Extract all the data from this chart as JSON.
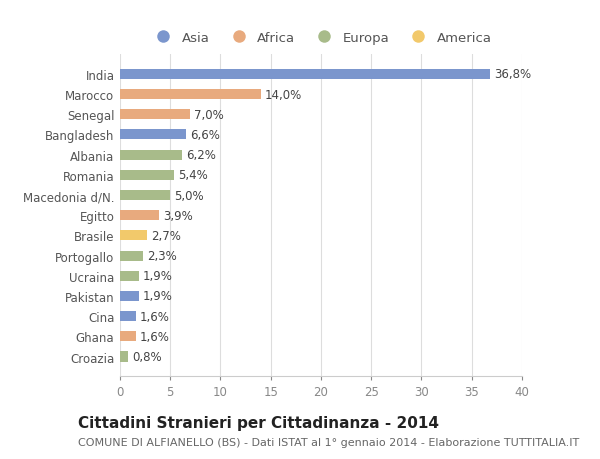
{
  "categories": [
    "India",
    "Marocco",
    "Senegal",
    "Bangladesh",
    "Albania",
    "Romania",
    "Macedonia d/N.",
    "Egitto",
    "Brasile",
    "Portogallo",
    "Ucraina",
    "Pakistan",
    "Cina",
    "Ghana",
    "Croazia"
  ],
  "values": [
    36.8,
    14.0,
    7.0,
    6.6,
    6.2,
    5.4,
    5.0,
    3.9,
    2.7,
    2.3,
    1.9,
    1.9,
    1.6,
    1.6,
    0.8
  ],
  "continents": [
    "Asia",
    "Africa",
    "Africa",
    "Asia",
    "Europa",
    "Europa",
    "Europa",
    "Africa",
    "America",
    "Europa",
    "Europa",
    "Asia",
    "Asia",
    "Africa",
    "Europa"
  ],
  "continent_colors": {
    "Asia": "#7b96cd",
    "Africa": "#e8aa7e",
    "Europa": "#a8bb8a",
    "America": "#f2c96b"
  },
  "legend_order": [
    "Asia",
    "Africa",
    "Europa",
    "America"
  ],
  "title": "Cittadini Stranieri per Cittadinanza - 2014",
  "subtitle": "COMUNE DI ALFIANELLO (BS) - Dati ISTAT al 1° gennaio 2014 - Elaborazione TUTTITALIA.IT",
  "xlim": [
    0,
    40
  ],
  "xticks": [
    0,
    5,
    10,
    15,
    20,
    25,
    30,
    35,
    40
  ],
  "bg_color": "#ffffff",
  "grid_color": "#dddddd",
  "bar_height": 0.5,
  "label_fontsize": 8.5,
  "title_fontsize": 11,
  "subtitle_fontsize": 8,
  "tick_fontsize": 8.5,
  "legend_fontsize": 9.5
}
